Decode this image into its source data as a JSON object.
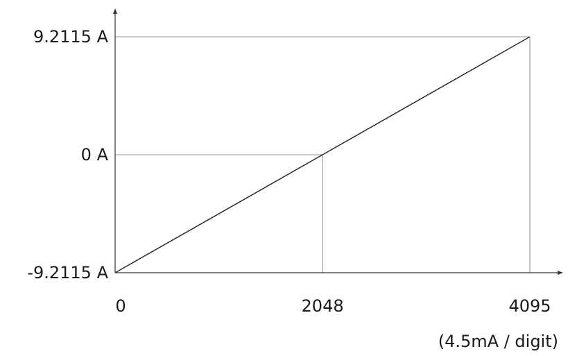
{
  "chart_data": {
    "type": "line",
    "title": "",
    "xlabel": "",
    "ylabel": "",
    "x_unit_note": "(4.5mA / digit)",
    "xlim": [
      0,
      4095
    ],
    "ylim": [
      -9.2115,
      9.2115
    ],
    "x_ticks": [
      {
        "value": 0,
        "label": "0"
      },
      {
        "value": 2048,
        "label": "2048"
      },
      {
        "value": 4095,
        "label": "4095"
      }
    ],
    "y_ticks": [
      {
        "value": -9.2115,
        "label": "-9.2115 A"
      },
      {
        "value": 0,
        "label": "0 A"
      },
      {
        "value": 9.2115,
        "label": "9.2115 A"
      }
    ],
    "series": [
      {
        "points": [
          {
            "x": 0,
            "y": -9.2115
          },
          {
            "x": 2048,
            "y": 0
          },
          {
            "x": 4095,
            "y": 9.2115
          }
        ],
        "color": "#2a2a2a"
      }
    ],
    "guides": [
      {
        "x": 2048,
        "y": 0
      },
      {
        "x": 4095,
        "y": 9.2115
      }
    ],
    "guide_color": "#9aa9b8",
    "grid": false,
    "legend": "none"
  }
}
